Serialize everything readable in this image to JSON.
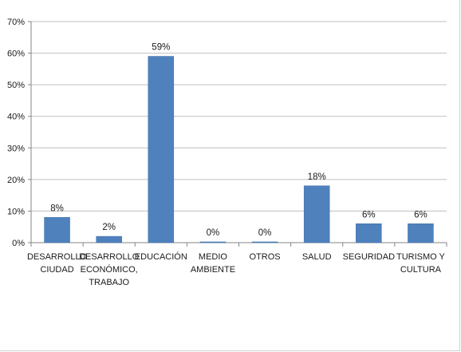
{
  "chart_data": {
    "type": "bar",
    "categories": [
      [
        "DESARROLLO",
        "CIUDAD"
      ],
      [
        "DESARROLLO",
        "ECONÓMICO,",
        "TRABAJO"
      ],
      [
        "EDUCACIÓN"
      ],
      [
        "MEDIO",
        "AMBIENTE"
      ],
      [
        "OTROS"
      ],
      [
        "SALUD"
      ],
      [
        "SEGURIDAD"
      ],
      [
        "TURISMO Y",
        "CULTURA"
      ]
    ],
    "values": [
      8,
      2,
      59,
      0,
      0,
      18,
      6,
      6
    ],
    "data_labels": [
      "8%",
      "2%",
      "59%",
      "0%",
      "0%",
      "18%",
      "6%",
      "6%"
    ],
    "ylim": [
      0,
      70
    ],
    "yticks": [
      0,
      10,
      20,
      30,
      40,
      50,
      60,
      70
    ],
    "ytick_labels": [
      "0%",
      "10%",
      "20%",
      "30%",
      "40%",
      "50%",
      "60%",
      "70%"
    ],
    "title": "",
    "xlabel": "",
    "ylabel": "",
    "grid": true,
    "legend": "none",
    "colors": {
      "bar": "#4f81bd",
      "bar_edge": "#3f6fa8",
      "grid": "#bfbfbf",
      "axis": "#868686"
    }
  }
}
